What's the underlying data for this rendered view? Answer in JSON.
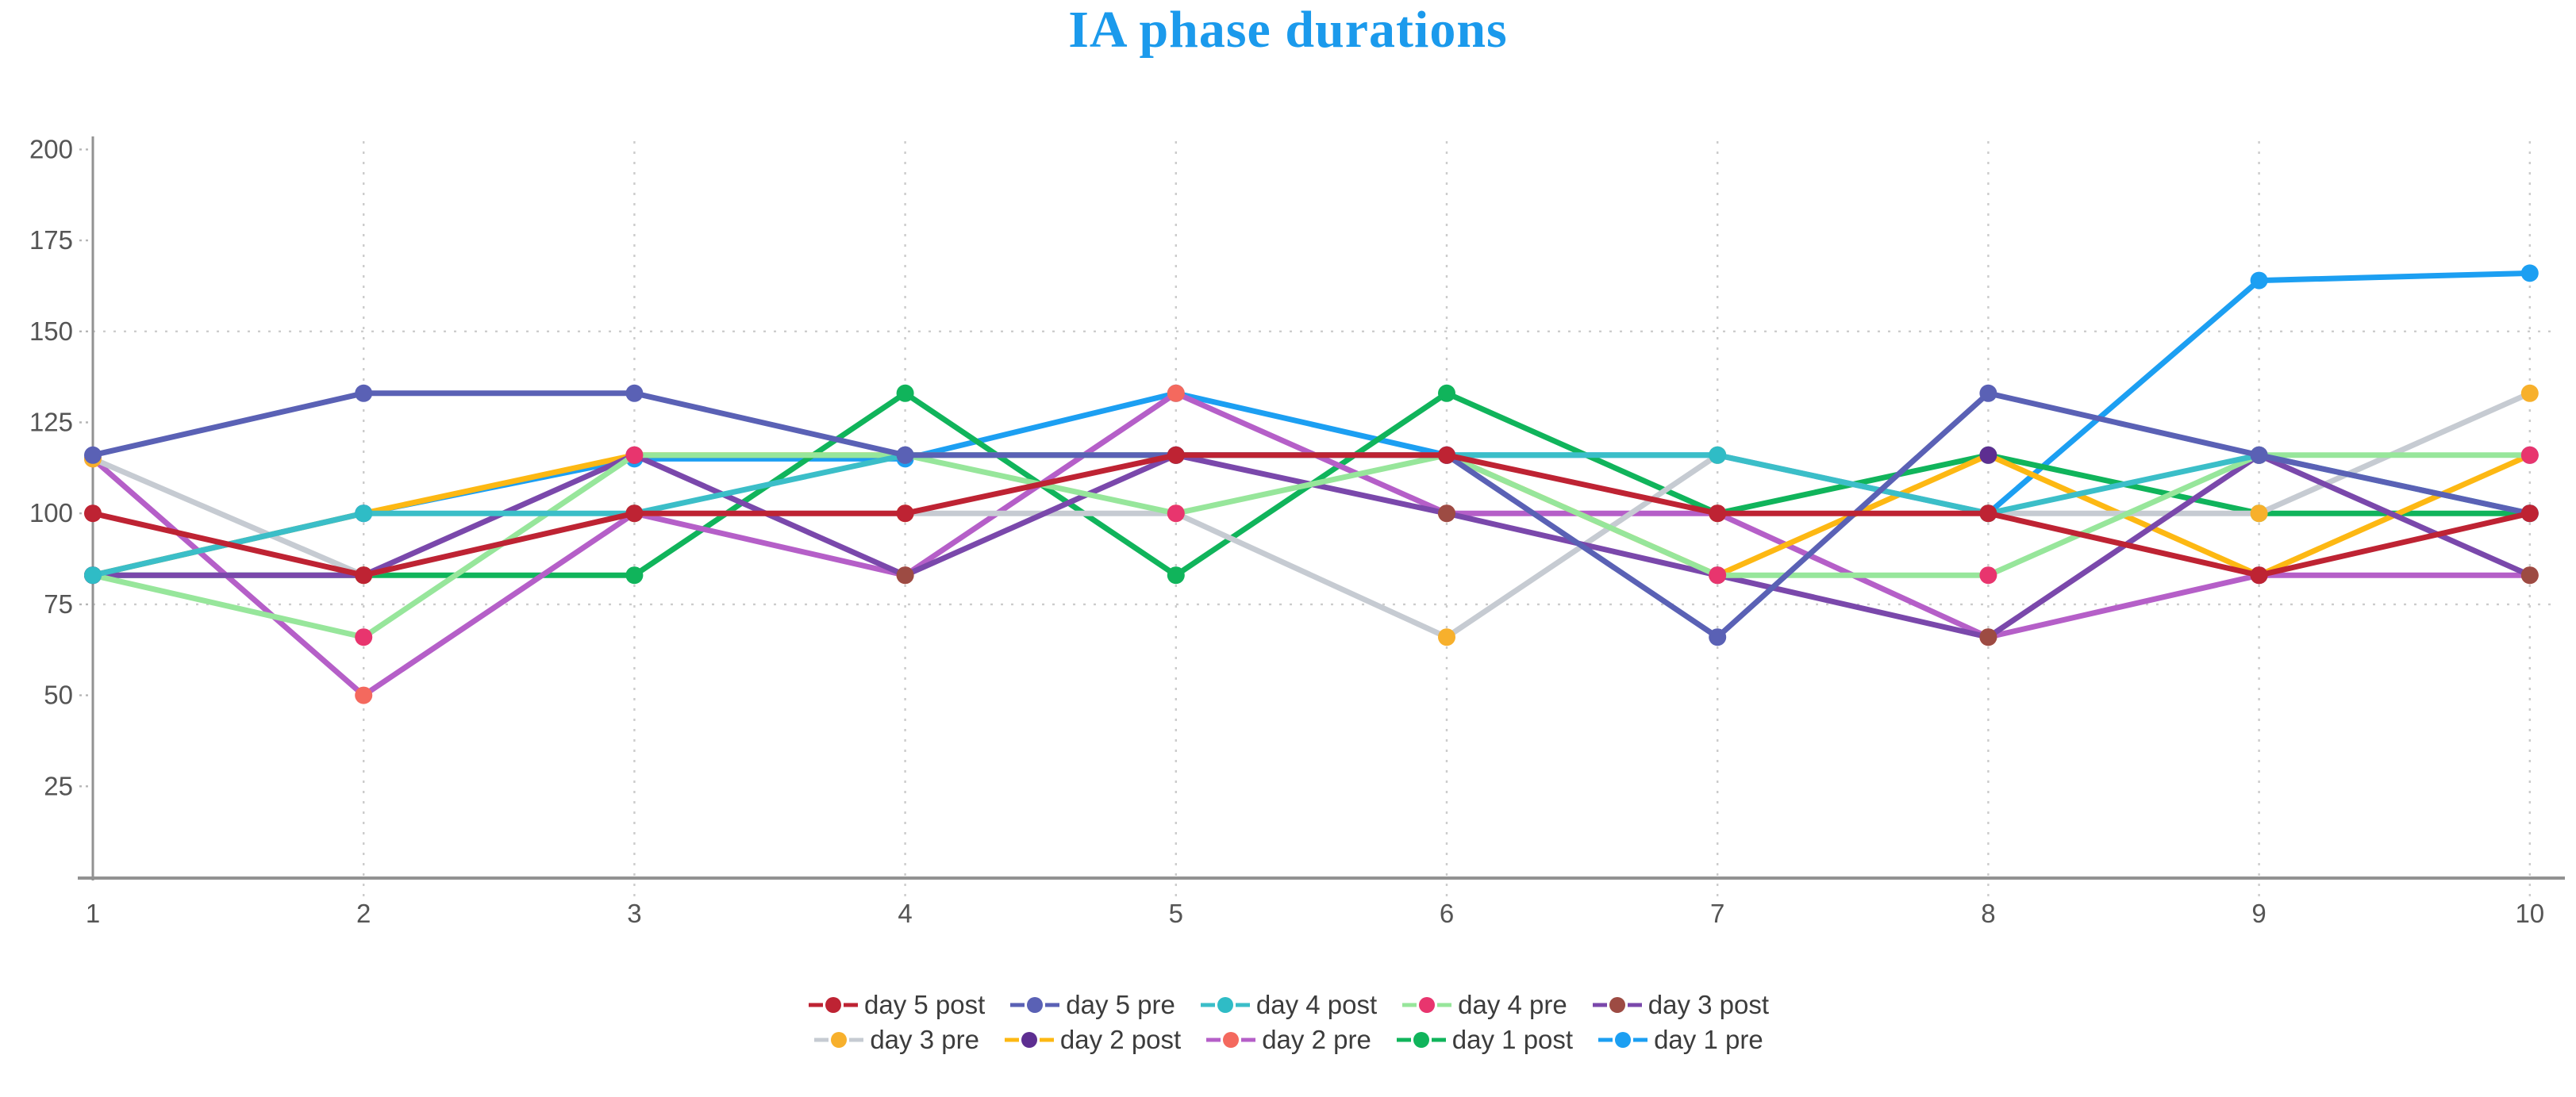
{
  "chart_data": {
    "type": "line",
    "title": "IA phase durations",
    "x": [
      1,
      2,
      3,
      4,
      5,
      6,
      7,
      8,
      9,
      10
    ],
    "x_tick_labels": [
      "1",
      "2",
      "3",
      "4",
      "5",
      "6",
      "7",
      "8",
      "9",
      "10"
    ],
    "y_tick_labels": [
      "25",
      "50",
      "75",
      "100",
      "125",
      "150",
      "175",
      "200"
    ],
    "y_ticks": [
      25,
      50,
      75,
      100,
      125,
      150,
      175,
      200
    ],
    "ylim": [
      0,
      205
    ],
    "grid": {
      "vertical_dotted_at_x": [
        2,
        3,
        4,
        5,
        6,
        7,
        8,
        9,
        10
      ],
      "horizontal_dotted_at_y": [
        75,
        150
      ]
    },
    "legend_position": "bottom",
    "legend_rows": [
      5,
      5
    ],
    "title_color": "#1b9aec",
    "axis_color": "#929292",
    "grid_color": "#cccccc",
    "tick_label_color": "#555555",
    "legend_text_color": "#3c3c3c",
    "series": [
      {
        "name": "day 5 post",
        "line_color": "#be2333",
        "marker_color": "#be2333",
        "values": [
          100,
          83,
          100,
          100,
          116,
          116,
          100,
          100,
          83,
          100
        ]
      },
      {
        "name": "day 5 pre",
        "line_color": "#5a61b5",
        "marker_color": "#5a61b5",
        "values": [
          116,
          133,
          133,
          116,
          116,
          116,
          66,
          133,
          116,
          100
        ]
      },
      {
        "name": "day 4 post",
        "line_color": "#3bbec8",
        "marker_color": "#2fbcc6",
        "values": [
          83,
          100,
          100,
          116,
          116,
          116,
          116,
          100,
          116,
          100
        ]
      },
      {
        "name": "day 4 pre",
        "line_color": "#97e69b",
        "marker_color": "#e8356e",
        "values": [
          83,
          66,
          116,
          116,
          100,
          116,
          83,
          83,
          116,
          116
        ]
      },
      {
        "name": "day 3 post",
        "line_color": "#7a48ab",
        "marker_color": "#9d4b43",
        "values": [
          83,
          83,
          116,
          83,
          116,
          100,
          83,
          66,
          116,
          83
        ]
      },
      {
        "name": "day 3 pre",
        "line_color": "#c6cbd2",
        "marker_color": "#f7b02c",
        "values": [
          115,
          83,
          100,
          100,
          100,
          66,
          116,
          100,
          100,
          133
        ]
      },
      {
        "name": "day 2 post",
        "line_color": "#fdb813",
        "marker_color": "#5d2e91",
        "values": [
          83,
          100,
          116,
          116,
          116,
          116,
          83,
          116,
          83,
          116
        ]
      },
      {
        "name": "day 2 pre",
        "line_color": "#b55fc8",
        "marker_color": "#f4695e",
        "values": [
          115,
          50,
          100,
          83,
          133,
          100,
          100,
          66,
          83,
          83
        ]
      },
      {
        "name": "day 1 post",
        "line_color": "#10b45b",
        "marker_color": "#10b45b",
        "values": [
          83,
          83,
          83,
          133,
          83,
          133,
          100,
          116,
          100,
          100
        ]
      },
      {
        "name": "day 1 pre",
        "line_color": "#1c9ff2",
        "marker_color": "#1c9ff2",
        "values": [
          83,
          100,
          115,
          115,
          133,
          116,
          116,
          100,
          164,
          166
        ]
      }
    ]
  }
}
